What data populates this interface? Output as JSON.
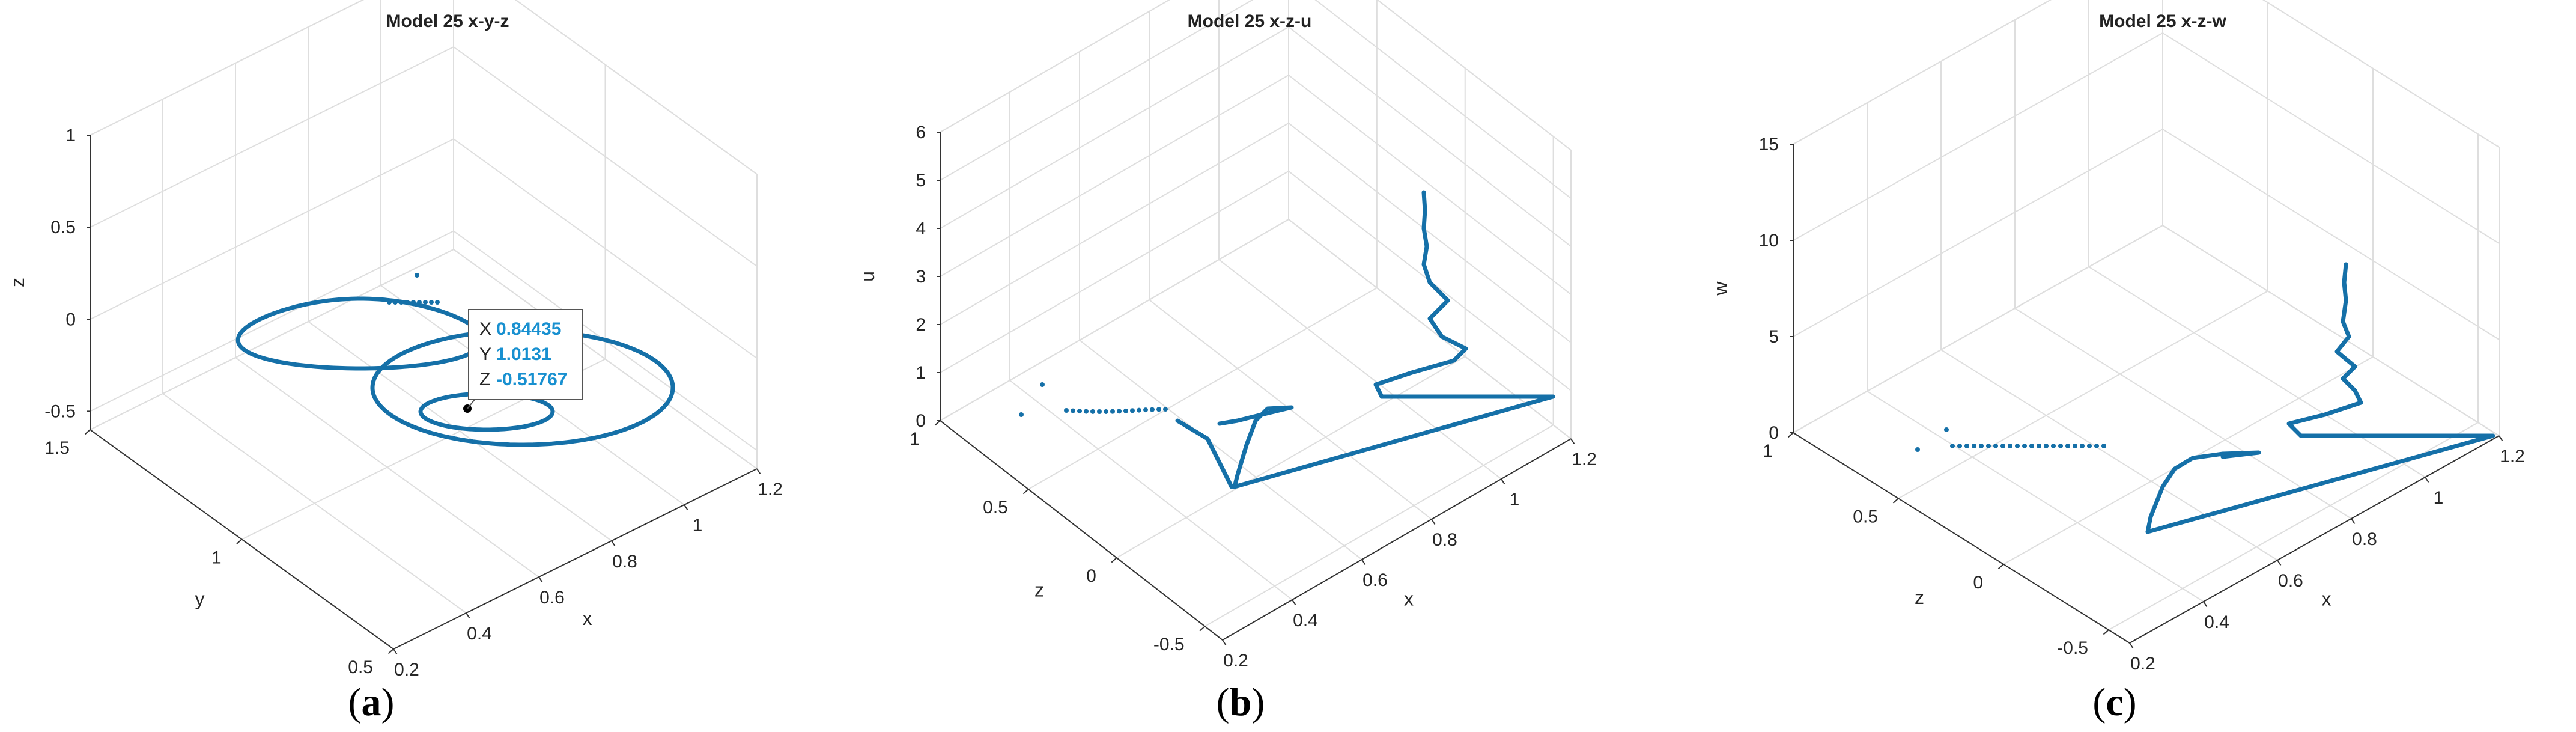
{
  "colors": {
    "series": "#1570a8",
    "grid": "#dedede",
    "axis": "#333333",
    "tooltip_value": "#1890d0"
  },
  "chart_data": [
    {
      "type": "line",
      "projection": "3d",
      "title": "Model 25 x-y-z",
      "caption": "a",
      "axes": {
        "x": {
          "label": "x",
          "range": [
            0.2,
            1.2
          ],
          "ticks": [
            "0.2",
            "0.4",
            "0.6",
            "0.8",
            "1",
            "1.2"
          ]
        },
        "y": {
          "label": "y",
          "range": [
            0.5,
            1.5
          ],
          "ticks": [
            "0.5",
            "1",
            "1.5"
          ]
        },
        "z": {
          "label": "z",
          "range": [
            -0.6,
            1
          ],
          "ticks": [
            "-0.5",
            "0",
            "0.5",
            "1"
          ]
        }
      },
      "grid": true,
      "series_description": "spiral trajectory around x≈0.8, y≈1.0, z≈-0.5 with scattered initial points",
      "datatip": {
        "X": "0.84435",
        "Y": "1.0131",
        "Z": "-0.51767"
      }
    },
    {
      "type": "line",
      "projection": "3d",
      "title": "Model 25 x-z-u",
      "caption": "b",
      "axes": {
        "x": {
          "label": "x",
          "range": [
            0.2,
            1.2
          ],
          "ticks": [
            "0.2",
            "0.4",
            "0.6",
            "0.8",
            "1",
            "1.2"
          ]
        },
        "y": {
          "label": "z",
          "range": [
            -0.6,
            1
          ],
          "ticks": [
            "-0.5",
            "0",
            "0.5",
            "1"
          ]
        },
        "z": {
          "label": "u",
          "range": [
            0,
            6
          ],
          "ticks": [
            "0",
            "1",
            "2",
            "3",
            "4",
            "5",
            "6"
          ]
        }
      },
      "grid": true
    },
    {
      "type": "line",
      "projection": "3d",
      "title": "Model 25 x-z-w",
      "caption": "c",
      "axes": {
        "x": {
          "label": "x",
          "range": [
            0.2,
            1.2
          ],
          "ticks": [
            "0.2",
            "0.4",
            "0.6",
            "0.8",
            "1",
            "1.2"
          ]
        },
        "y": {
          "label": "z",
          "range": [
            -0.6,
            1
          ],
          "ticks": [
            "-0.5",
            "0",
            "0.5",
            "1"
          ]
        },
        "z": {
          "label": "w",
          "range": [
            0,
            15
          ],
          "ticks": [
            "0",
            "5",
            "10",
            "15"
          ]
        }
      },
      "grid": true
    }
  ]
}
